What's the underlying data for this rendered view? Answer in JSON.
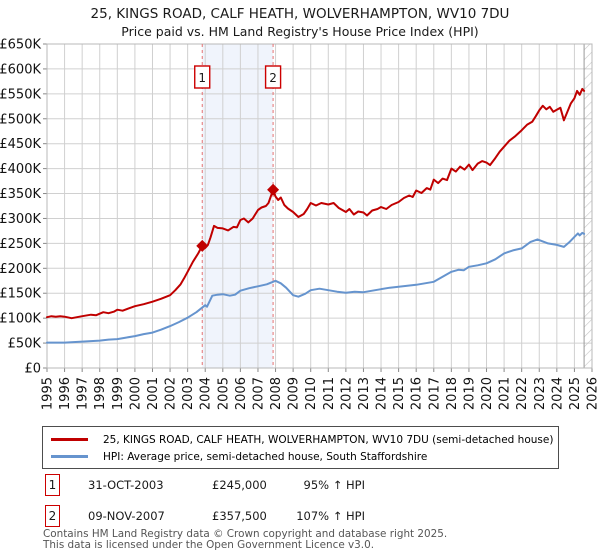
{
  "title": "25, KINGS ROAD, CALF HEATH, WOLVERHAMPTON, WV10 7DU",
  "subtitle": "Price paid vs. HM Land Registry's House Price Index (HPI)",
  "chart_data": {
    "type": "line",
    "grid": true,
    "legend_position": "bottom",
    "x_axis": {
      "min": 1995,
      "max": 2026,
      "tick_labels": [
        "1995",
        "1996",
        "1997",
        "1998",
        "1999",
        "2000",
        "2001",
        "2002",
        "2003",
        "2004",
        "2005",
        "2006",
        "2007",
        "2008",
        "2009",
        "2010",
        "2011",
        "2012",
        "2013",
        "2014",
        "2015",
        "2016",
        "2017",
        "2018",
        "2019",
        "2020",
        "2021",
        "2022",
        "2023",
        "2024",
        "2025",
        "2026"
      ]
    },
    "y_axis": {
      "min": 0,
      "max": 650000,
      "tick_step": 50000,
      "tick_labels": [
        "£0",
        "£50K",
        "£100K",
        "£150K",
        "£200K",
        "£250K",
        "£300K",
        "£350K",
        "£400K",
        "£450K",
        "£500K",
        "£550K",
        "£600K",
        "£650K"
      ]
    },
    "shaded_span": [
      2003.83,
      2007.86
    ],
    "hatch_span": [
      2025.55,
      2026
    ],
    "colors": {
      "grid": "#d0d0d0",
      "axis": "#b8b8b8",
      "event_line": "#e57373",
      "event_box_border": "#cc0000",
      "shade": "#f0f4fc",
      "hatch": "#c4c4c4"
    },
    "series": [
      {
        "name": "price-paid",
        "legend": "25, KINGS ROAD, CALF HEATH, WOLVERHAMPTON, WV10 7DU (semi-detached house)",
        "color": "#c00000",
        "unit": "GBP thousands",
        "points": [
          [
            1995,
            102
          ],
          [
            1995.25,
            104
          ],
          [
            1995.5,
            103
          ],
          [
            1995.75,
            104
          ],
          [
            1996,
            103
          ],
          [
            1996.4,
            100
          ],
          [
            1996.7,
            102
          ],
          [
            1997,
            104
          ],
          [
            1997.5,
            107
          ],
          [
            1997.8,
            106
          ],
          [
            1998,
            109
          ],
          [
            1998.2,
            112
          ],
          [
            1998.5,
            110
          ],
          [
            1998.8,
            113
          ],
          [
            1999,
            117
          ],
          [
            1999.3,
            115
          ],
          [
            1999.6,
            119
          ],
          [
            2000,
            124
          ],
          [
            2000.5,
            128
          ],
          [
            2001,
            133
          ],
          [
            2001.5,
            139
          ],
          [
            2002,
            146
          ],
          [
            2002.3,
            156
          ],
          [
            2002.6,
            168
          ],
          [
            2002.8,
            180
          ],
          [
            2003,
            193
          ],
          [
            2003.3,
            213
          ],
          [
            2003.6,
            230
          ],
          [
            2003.83,
            245
          ],
          [
            2004,
            241
          ],
          [
            2004.15,
            247
          ],
          [
            2004.3,
            262
          ],
          [
            2004.5,
            285
          ],
          [
            2004.7,
            281
          ],
          [
            2005,
            280
          ],
          [
            2005.3,
            276
          ],
          [
            2005.6,
            283
          ],
          [
            2005.8,
            282
          ],
          [
            2006,
            297
          ],
          [
            2006.2,
            300
          ],
          [
            2006.45,
            292
          ],
          [
            2006.7,
            300
          ],
          [
            2007,
            317
          ],
          [
            2007.2,
            322
          ],
          [
            2007.45,
            325
          ],
          [
            2007.6,
            331
          ],
          [
            2007.86,
            357.5
          ],
          [
            2008,
            344
          ],
          [
            2008.15,
            337
          ],
          [
            2008.3,
            342
          ],
          [
            2008.5,
            327
          ],
          [
            2008.7,
            320
          ],
          [
            2009,
            313
          ],
          [
            2009.3,
            303
          ],
          [
            2009.6,
            309
          ],
          [
            2009.8,
            319
          ],
          [
            2010,
            331
          ],
          [
            2010.3,
            326
          ],
          [
            2010.6,
            331
          ],
          [
            2011,
            328
          ],
          [
            2011.3,
            331
          ],
          [
            2011.6,
            321
          ],
          [
            2012,
            313
          ],
          [
            2012.2,
            319
          ],
          [
            2012.45,
            308
          ],
          [
            2012.7,
            314
          ],
          [
            2013,
            312
          ],
          [
            2013.2,
            306
          ],
          [
            2013.5,
            316
          ],
          [
            2013.8,
            319
          ],
          [
            2014,
            323
          ],
          [
            2014.3,
            319
          ],
          [
            2014.6,
            327
          ],
          [
            2015,
            333
          ],
          [
            2015.3,
            341
          ],
          [
            2015.6,
            346
          ],
          [
            2015.8,
            343
          ],
          [
            2016,
            356
          ],
          [
            2016.3,
            351
          ],
          [
            2016.6,
            361
          ],
          [
            2016.8,
            358
          ],
          [
            2017,
            378
          ],
          [
            2017.25,
            371
          ],
          [
            2017.5,
            380
          ],
          [
            2017.75,
            377
          ],
          [
            2018,
            400
          ],
          [
            2018.25,
            394
          ],
          [
            2018.5,
            404
          ],
          [
            2018.75,
            398
          ],
          [
            2019,
            408
          ],
          [
            2019.2,
            397
          ],
          [
            2019.5,
            410
          ],
          [
            2019.75,
            415
          ],
          [
            2020,
            412
          ],
          [
            2020.2,
            407
          ],
          [
            2020.5,
            421
          ],
          [
            2020.75,
            434
          ],
          [
            2021,
            444
          ],
          [
            2021.3,
            456
          ],
          [
            2021.6,
            464
          ],
          [
            2022,
            477
          ],
          [
            2022.3,
            488
          ],
          [
            2022.6,
            494
          ],
          [
            2022.8,
            505
          ],
          [
            2023,
            517
          ],
          [
            2023.2,
            526
          ],
          [
            2023.4,
            519
          ],
          [
            2023.6,
            524
          ],
          [
            2023.8,
            514
          ],
          [
            2024,
            518
          ],
          [
            2024.2,
            522
          ],
          [
            2024.4,
            497
          ],
          [
            2024.6,
            514
          ],
          [
            2024.8,
            531
          ],
          [
            2025,
            541
          ],
          [
            2025.15,
            556
          ],
          [
            2025.3,
            548
          ],
          [
            2025.45,
            560
          ],
          [
            2025.55,
            556
          ]
        ]
      },
      {
        "name": "hpi",
        "legend": "HPI: Average price, semi-detached house, South Staffordshire",
        "color": "#6694ce",
        "unit": "GBP thousands",
        "points": [
          [
            1995,
            51
          ],
          [
            1995.5,
            51
          ],
          [
            1996,
            51
          ],
          [
            1996.5,
            52
          ],
          [
            1997,
            53
          ],
          [
            1997.5,
            54
          ],
          [
            1998,
            55
          ],
          [
            1998.5,
            57
          ],
          [
            1999,
            58
          ],
          [
            1999.5,
            61
          ],
          [
            2000,
            64
          ],
          [
            2000.5,
            68
          ],
          [
            2001,
            71
          ],
          [
            2001.5,
            77
          ],
          [
            2002,
            84
          ],
          [
            2002.5,
            92
          ],
          [
            2003,
            101
          ],
          [
            2003.5,
            112
          ],
          [
            2004,
            126
          ],
          [
            2004.1,
            123
          ],
          [
            2004.4,
            145
          ],
          [
            2004.7,
            147
          ],
          [
            2005,
            148
          ],
          [
            2005.4,
            145
          ],
          [
            2005.7,
            147
          ],
          [
            2006,
            155
          ],
          [
            2006.5,
            160
          ],
          [
            2007,
            164
          ],
          [
            2007.5,
            168
          ],
          [
            2008,
            175
          ],
          [
            2008.3,
            170
          ],
          [
            2008.6,
            161
          ],
          [
            2009,
            146
          ],
          [
            2009.3,
            143
          ],
          [
            2009.7,
            149
          ],
          [
            2010,
            156
          ],
          [
            2010.5,
            159
          ],
          [
            2011,
            156
          ],
          [
            2011.5,
            153
          ],
          [
            2012,
            151
          ],
          [
            2012.5,
            153
          ],
          [
            2013,
            152
          ],
          [
            2013.5,
            155
          ],
          [
            2014,
            158
          ],
          [
            2014.5,
            161
          ],
          [
            2015,
            163
          ],
          [
            2015.5,
            165
          ],
          [
            2016,
            167
          ],
          [
            2016.5,
            170
          ],
          [
            2017,
            173
          ],
          [
            2017.5,
            183
          ],
          [
            2018,
            193
          ],
          [
            2018.4,
            197
          ],
          [
            2018.7,
            196
          ],
          [
            2019,
            203
          ],
          [
            2019.5,
            206
          ],
          [
            2020,
            210
          ],
          [
            2020.5,
            218
          ],
          [
            2021,
            230
          ],
          [
            2021.5,
            236
          ],
          [
            2022,
            240
          ],
          [
            2022.5,
            253
          ],
          [
            2022.9,
            258
          ],
          [
            2023.2,
            254
          ],
          [
            2023.5,
            250
          ],
          [
            2024,
            247
          ],
          [
            2024.4,
            243
          ],
          [
            2024.7,
            252
          ],
          [
            2025,
            263
          ],
          [
            2025.2,
            270
          ],
          [
            2025.3,
            266
          ],
          [
            2025.45,
            271
          ],
          [
            2025.55,
            269
          ]
        ]
      }
    ],
    "events": [
      {
        "label": "1",
        "x": 2003.83,
        "value": 245,
        "date": "31-OCT-2003",
        "price": "£245,000",
        "vs_hpi": "95% ↑ HPI"
      },
      {
        "label": "2",
        "x": 2007.86,
        "value": 357.5,
        "date": "09-NOV-2007",
        "price": "£357,500",
        "vs_hpi": "107% ↑ HPI"
      }
    ]
  },
  "footer": {
    "line1": "Contains HM Land Registry data © Crown copyright and database right 2025.",
    "line2": "This data is licensed under the Open Government Licence v3.0."
  }
}
